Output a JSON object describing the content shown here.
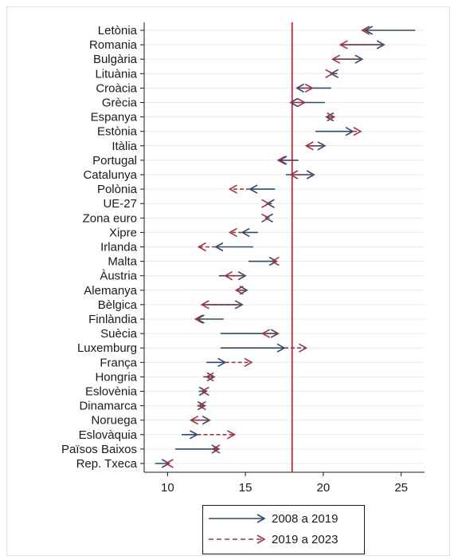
{
  "chart_data": {
    "type": "arrow-dot",
    "xlim": [
      8.5,
      26.5
    ],
    "x_ticks": [
      10,
      15,
      20,
      25
    ],
    "reference_line_x": 18,
    "categories": [
      "Letònia",
      "Romania",
      "Bulgària",
      "Lituània",
      "Croàcia",
      "Grècia",
      "Espanya",
      "Estònia",
      "Itàlia",
      "Portugal",
      "Catalunya",
      "Polònia",
      "UE-27",
      "Zona euro",
      "Xipre",
      "Irlanda",
      "Malta",
      "Àustria",
      "Alemanya",
      "Bèlgica",
      "Finlàndia",
      "Suècia",
      "Luxemburg",
      "França",
      "Hongria",
      "Eslovènia",
      "Dinamarca",
      "Noruega",
      "Eslovàquia",
      "Països Baixos",
      "Rep. Txeca"
    ],
    "series": [
      {
        "name": "2008 a 2019",
        "style": "solid",
        "color": "#2c4a6e",
        "segments": [
          [
            25.9,
            22.7
          ],
          [
            21.1,
            23.9
          ],
          [
            20.6,
            22.5
          ],
          [
            20.9,
            20.5
          ],
          [
            20.5,
            18.3
          ],
          [
            20.1,
            17.9
          ],
          [
            20.6,
            20.2
          ],
          [
            19.5,
            21.9
          ],
          [
            18.9,
            20.1
          ],
          [
            18.4,
            17.2
          ],
          [
            17.6,
            19.4
          ],
          [
            16.9,
            15.3
          ],
          [
            16.7,
            16.4
          ],
          [
            16.5,
            16.3
          ],
          [
            15.8,
            14.8
          ],
          [
            15.5,
            13.1
          ],
          [
            15.2,
            17.0
          ],
          [
            13.3,
            15.0
          ],
          [
            14.5,
            15.1
          ],
          [
            12.3,
            14.8
          ],
          [
            13.6,
            11.9
          ],
          [
            13.4,
            17.1
          ],
          [
            13.4,
            17.5
          ],
          [
            12.5,
            13.7
          ],
          [
            12.3,
            13.0
          ],
          [
            12.0,
            12.5
          ],
          [
            11.9,
            12.4
          ],
          [
            11.5,
            12.7
          ],
          [
            10.9,
            11.9
          ],
          [
            10.5,
            13.3
          ],
          [
            9.2,
            10.1
          ]
        ]
      },
      {
        "name": "2019 a 2023",
        "style": "dashed",
        "color": "#a8323e",
        "segments": [
          [
            22.7,
            22.5
          ],
          [
            23.9,
            21.1
          ],
          [
            22.5,
            20.6
          ],
          [
            20.5,
            20.6
          ],
          [
            18.3,
            19.3
          ],
          [
            17.9,
            18.8
          ],
          [
            20.2,
            20.7
          ],
          [
            21.9,
            22.4
          ],
          [
            20.1,
            18.9
          ],
          [
            17.2,
            17.1
          ],
          [
            19.4,
            17.9
          ],
          [
            15.3,
            14.0
          ],
          [
            16.4,
            16.5
          ],
          [
            16.3,
            16.5
          ],
          [
            14.8,
            14.0
          ],
          [
            13.1,
            12.0
          ],
          [
            17.0,
            16.7
          ],
          [
            15.0,
            13.7
          ],
          [
            15.1,
            14.4
          ],
          [
            14.8,
            12.2
          ],
          [
            11.9,
            11.8
          ],
          [
            17.1,
            16.1
          ],
          [
            17.5,
            18.9
          ],
          [
            13.7,
            15.4
          ],
          [
            13.0,
            12.5
          ],
          [
            12.5,
            12.2
          ],
          [
            12.4,
            12.0
          ],
          [
            12.7,
            11.5
          ],
          [
            11.9,
            14.3
          ],
          [
            13.3,
            12.9
          ],
          [
            10.1,
            9.9
          ]
        ]
      }
    ],
    "grid": true,
    "legend_position": "bottom"
  }
}
